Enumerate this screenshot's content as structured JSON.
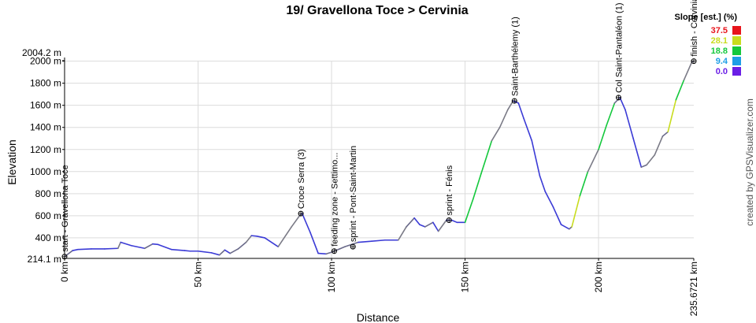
{
  "chart_data": {
    "type": "area",
    "title": "19/ Gravellona Toce > Cervinia",
    "xlabel": "Distance",
    "ylabel": "Elevation",
    "xlim": [
      0,
      235.6721
    ],
    "ylim": [
      214.1,
      2004.2
    ],
    "x_ticks": [
      "0 km",
      "50 km",
      "100 km",
      "150 km",
      "200 km",
      "235.6721 km"
    ],
    "x_tick_values": [
      0,
      50,
      100,
      150,
      200,
      235.6721
    ],
    "y_ticks": [
      "214.1 m",
      "400 m",
      "600 m",
      "800 m",
      "1000 m",
      "1200 m",
      "1400 m",
      "1600 m",
      "1800 m",
      "2000 m",
      "2004.2 m"
    ],
    "y_tick_values": [
      214.1,
      400,
      600,
      800,
      1000,
      1200,
      1400,
      1600,
      1800,
      2000,
      2004.2
    ],
    "grid": true,
    "profile": {
      "x": [
        0,
        3,
        5,
        10,
        15,
        20,
        21,
        25,
        30,
        33,
        35,
        40,
        45,
        47,
        50,
        55,
        58,
        60,
        62,
        65,
        68,
        70,
        72,
        75,
        80,
        85,
        88,
        89,
        92,
        95,
        98,
        100,
        103,
        105,
        110,
        115,
        120,
        125,
        128,
        131,
        133,
        135,
        138,
        140,
        143,
        145,
        147,
        150,
        153,
        156,
        160,
        163,
        166,
        168,
        170,
        172,
        175,
        178,
        180,
        183,
        186,
        189,
        190,
        193,
        196,
        200,
        203,
        206,
        208,
        210,
        213,
        216,
        218,
        221,
        224,
        226,
        229,
        232,
        235,
        235.6721
      ],
      "y": [
        230,
        285,
        295,
        300,
        300,
        305,
        360,
        330,
        305,
        345,
        340,
        295,
        285,
        280,
        280,
        265,
        245,
        290,
        260,
        300,
        360,
        420,
        415,
        400,
        320,
        500,
        600,
        620,
        450,
        260,
        255,
        270,
        300,
        320,
        360,
        370,
        380,
        380,
        500,
        580,
        520,
        500,
        540,
        460,
        560,
        560,
        540,
        540,
        750,
        980,
        1280,
        1400,
        1560,
        1640,
        1620,
        1480,
        1280,
        960,
        820,
        680,
        520,
        480,
        500,
        780,
        1000,
        1200,
        1420,
        1620,
        1670,
        1560,
        1300,
        1040,
        1060,
        1150,
        1320,
        1360,
        1650,
        1830,
        1995,
        2000
      ]
    },
    "waypoints": [
      {
        "x": 0,
        "y": 230,
        "label": "start - Gravellona Toce"
      },
      {
        "x": 88.5,
        "y": 620,
        "label": "Croce Serra (3)"
      },
      {
        "x": 101,
        "y": 280,
        "label": "feeding zone - Settimo..."
      },
      {
        "x": 108,
        "y": 320,
        "label": "sprint - Pont-Saint-Martin"
      },
      {
        "x": 144,
        "y": 560,
        "label": "sprint - Fénis"
      },
      {
        "x": 168.5,
        "y": 1640,
        "label": "Saint-Barthélemy (1)"
      },
      {
        "x": 207.5,
        "y": 1670,
        "label": "Col Saint-Pantaléon (1)"
      },
      {
        "x": 235.6721,
        "y": 2000,
        "label": "finish - Cervinia"
      }
    ],
    "legend": {
      "title": "Slope [est.] (%)",
      "placement": "top-right",
      "entries": [
        {
          "value": "37.5",
          "color": "#e8141b"
        },
        {
          "value": "28.1",
          "color": "#c8dc1e"
        },
        {
          "value": "18.8",
          "color": "#14c83c"
        },
        {
          "value": "9.4",
          "color": "#1e9ee6"
        },
        {
          "value": "0.0",
          "color": "#6a1ee6"
        }
      ]
    },
    "credit": "created by GPSVisualizer.com"
  }
}
